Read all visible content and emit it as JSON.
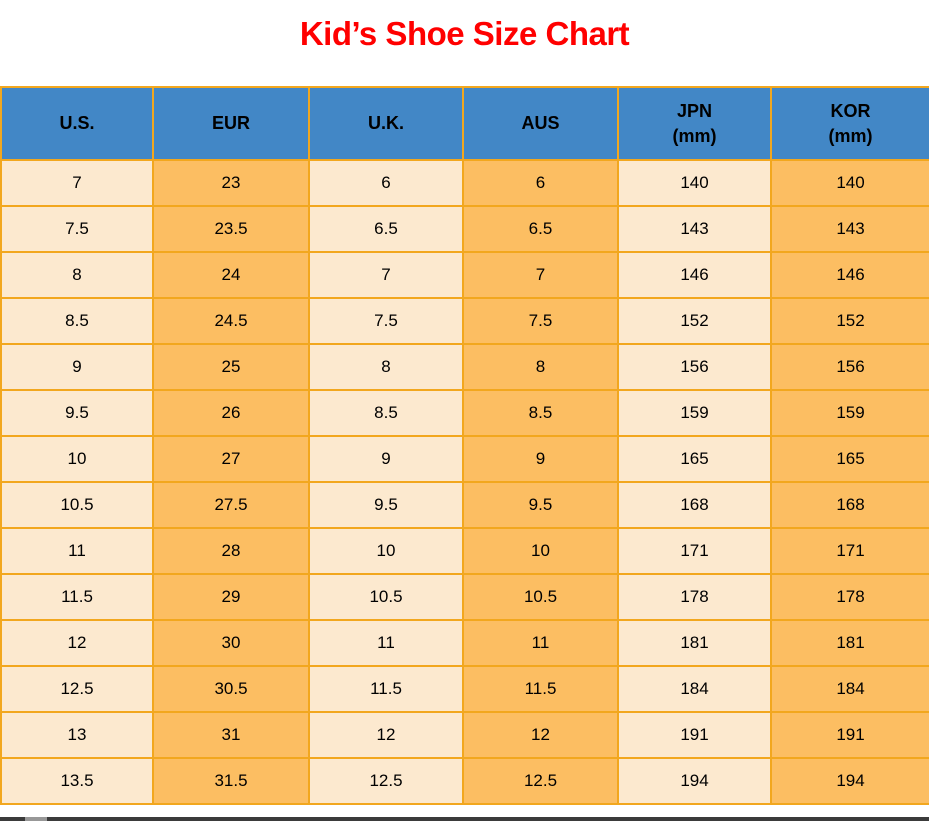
{
  "title": "Kid’s Shoe Size Chart",
  "colors": {
    "title_red": "#ff0000",
    "header_blue": "#4287c6",
    "cell_cream": "#fce9cf",
    "cell_orange": "#fcbe62",
    "grid_orange": "#f2a71e",
    "text_black": "#000000",
    "bottom_bar_dark": "#3b3b3b",
    "bottom_bar_thumb": "#989898"
  },
  "table": {
    "columns": [
      {
        "label": "U.S.",
        "sub": ""
      },
      {
        "label": "EUR",
        "sub": ""
      },
      {
        "label": "U.K.",
        "sub": ""
      },
      {
        "label": "AUS",
        "sub": ""
      },
      {
        "label": "JPN",
        "sub": "(mm)"
      },
      {
        "label": "KOR",
        "sub": "(mm)"
      }
    ],
    "rows": [
      [
        "7",
        "23",
        "6",
        "6",
        "140",
        "140"
      ],
      [
        "7.5",
        "23.5",
        "6.5",
        "6.5",
        "143",
        "143"
      ],
      [
        "8",
        "24",
        "7",
        "7",
        "146",
        "146"
      ],
      [
        "8.5",
        "24.5",
        "7.5",
        "7.5",
        "152",
        "152"
      ],
      [
        "9",
        "25",
        "8",
        "8",
        "156",
        "156"
      ],
      [
        "9.5",
        "26",
        "8.5",
        "8.5",
        "159",
        "159"
      ],
      [
        "10",
        "27",
        "9",
        "9",
        "165",
        "165"
      ],
      [
        "10.5",
        "27.5",
        "9.5",
        "9.5",
        "168",
        "168"
      ],
      [
        "11",
        "28",
        "10",
        "10",
        "171",
        "171"
      ],
      [
        "11.5",
        "29",
        "10.5",
        "10.5",
        "178",
        "178"
      ],
      [
        "12",
        "30",
        "11",
        "11",
        "181",
        "181"
      ],
      [
        "12.5",
        "30.5",
        "11.5",
        "11.5",
        "184",
        "184"
      ],
      [
        "13",
        "31",
        "12",
        "12",
        "191",
        "191"
      ],
      [
        "13.5",
        "31.5",
        "12.5",
        "12.5",
        "194",
        "194"
      ]
    ]
  },
  "chart_data": {
    "type": "table",
    "title": "Kid’s Shoe Size Chart",
    "columns": [
      "U.S.",
      "EUR",
      "U.K.",
      "AUS",
      "JPN (mm)",
      "KOR (mm)"
    ],
    "rows": [
      [
        7,
        23,
        6,
        6,
        140,
        140
      ],
      [
        7.5,
        23.5,
        6.5,
        6.5,
        143,
        143
      ],
      [
        8,
        24,
        7,
        7,
        146,
        146
      ],
      [
        8.5,
        24.5,
        7.5,
        7.5,
        152,
        152
      ],
      [
        9,
        25,
        8,
        8,
        156,
        156
      ],
      [
        9.5,
        26,
        8.5,
        8.5,
        159,
        159
      ],
      [
        10,
        27,
        9,
        9,
        165,
        165
      ],
      [
        10.5,
        27.5,
        9.5,
        9.5,
        168,
        168
      ],
      [
        11,
        28,
        10,
        10,
        171,
        171
      ],
      [
        11.5,
        29,
        10.5,
        10.5,
        178,
        178
      ],
      [
        12,
        30,
        11,
        11,
        181,
        181
      ],
      [
        12.5,
        30.5,
        11.5,
        11.5,
        184,
        184
      ],
      [
        13,
        31,
        12,
        12,
        191,
        191
      ],
      [
        13.5,
        31.5,
        12.5,
        12.5,
        194,
        194
      ]
    ]
  }
}
